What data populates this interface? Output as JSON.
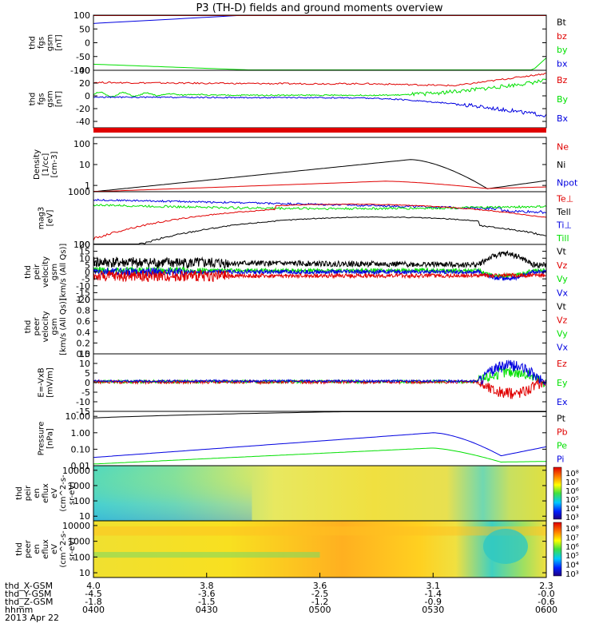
{
  "title": "P3 (TH-D) fields and ground moments overview",
  "colors": {
    "black": "#000000",
    "red": "#e00000",
    "green": "#00e000",
    "blue": "#0000e0"
  },
  "colorbar_labels": [
    "10⁸",
    "10⁷",
    "10⁶",
    "10⁵",
    "10⁴",
    "10³"
  ],
  "chart_data": [
    {
      "type": "line",
      "ylabel": [
        "thd",
        "fgs",
        "gsm",
        "[nT]"
      ],
      "ylim": [
        -100,
        100
      ],
      "yticks": [
        "100",
        "50",
        "0",
        "-50",
        "-100"
      ],
      "legend": [
        {
          "name": "Bt",
          "color": "black"
        },
        {
          "name": "bz",
          "color": "red"
        },
        {
          "name": "by",
          "color": "green"
        },
        {
          "name": "bx",
          "color": "blue"
        }
      ]
    },
    {
      "type": "line",
      "ylabel": [
        "thd",
        "fgs",
        "gsm",
        "[nT]"
      ],
      "ylim": [
        -50,
        40
      ],
      "yticks": [
        "40",
        "20",
        "0",
        "-20",
        "-40"
      ],
      "legend": [
        {
          "name": "Bz",
          "color": "red"
        },
        {
          "name": "By",
          "color": "green"
        },
        {
          "name": "Bx",
          "color": "blue"
        }
      ]
    },
    {
      "type": "line",
      "ylabel": [
        "Density",
        "[1/cc]",
        "[cm-3]"
      ],
      "yscale": "log",
      "ylim": [
        0.5,
        200
      ],
      "yticks": [
        "100",
        "10",
        "1"
      ],
      "legend": [
        {
          "name": "Ne",
          "color": "red"
        },
        {
          "name": "Ni",
          "color": "black"
        },
        {
          "name": "Npot",
          "color": "blue"
        }
      ]
    },
    {
      "type": "line",
      "ylabel": [
        "mag3",
        "[eV]"
      ],
      "yscale": "log",
      "ylim": [
        100,
        1000
      ],
      "yticks": [
        "1000",
        "100"
      ],
      "legend": [
        {
          "name": "Te⊥",
          "color": "red"
        },
        {
          "name": "Tell",
          "color": "black"
        },
        {
          "name": "Ti⊥",
          "color": "blue"
        },
        {
          "name": "Till",
          "color": "green"
        }
      ]
    },
    {
      "type": "line",
      "ylabel": [
        "thd",
        "peir",
        "velocity",
        "gsm",
        "[km/s (All Qs)]"
      ],
      "ylim": [
        -20,
        20
      ],
      "yticks": [
        "20",
        "15",
        "10",
        "5",
        "0",
        "-5",
        "-10",
        "-15",
        "-20"
      ],
      "legend": [
        {
          "name": "Vt",
          "color": "black"
        },
        {
          "name": "Vz",
          "color": "red"
        },
        {
          "name": "Vy",
          "color": "green"
        },
        {
          "name": "Vx",
          "color": "blue"
        }
      ]
    },
    {
      "type": "line",
      "ylabel": [
        "thd",
        "peer",
        "velocity",
        "gsm",
        "[km/s (All Qs)]"
      ],
      "ylim": [
        0,
        1
      ],
      "yticks": [
        "1.0",
        "0.8",
        "0.6",
        "0.4",
        "0.2",
        "0.0"
      ],
      "legend": [
        {
          "name": "Vt",
          "color": "black"
        },
        {
          "name": "Vz",
          "color": "red"
        },
        {
          "name": "Vy",
          "color": "green"
        },
        {
          "name": "Vx",
          "color": "blue"
        }
      ]
    },
    {
      "type": "line",
      "ylabel": [
        "E=-VxB",
        "[mV/m]"
      ],
      "ylim": [
        -15,
        15
      ],
      "yticks": [
        "15",
        "10",
        "5",
        "0",
        "-5",
        "-10",
        "-15"
      ],
      "legend": [
        {
          "name": "Ez",
          "color": "red"
        },
        {
          "name": "Ey",
          "color": "green"
        },
        {
          "name": "Ex",
          "color": "blue"
        }
      ]
    },
    {
      "type": "line",
      "ylabel": [
        "Pressure",
        "[nPa]"
      ],
      "yscale": "log",
      "ylim": [
        0.01,
        20
      ],
      "yticks": [
        "10.00",
        "1.00",
        "0.10",
        "0.01"
      ],
      "legend": [
        {
          "name": "Pt",
          "color": "black"
        },
        {
          "name": "Pb",
          "color": "red"
        },
        {
          "name": "Pe",
          "color": "green"
        },
        {
          "name": "Pi",
          "color": "blue"
        }
      ]
    },
    {
      "type": "heatmap",
      "ylabel": [
        "thd",
        "peir",
        "en",
        "eflux",
        "eV",
        "(cm^2-s-",
        "sr-eV)"
      ],
      "yscale": "log",
      "ylim": [
        5,
        20000
      ],
      "yticks": [
        "10000",
        "1000",
        "100",
        "10"
      ]
    },
    {
      "type": "heatmap",
      "ylabel": [
        "thd",
        "peer",
        "en",
        "eflux",
        "eV",
        "(cm^2-s-",
        "sr-eV)"
      ],
      "yscale": "log",
      "ylim": [
        5,
        20000
      ],
      "yticks": [
        "10000",
        "1000",
        "100",
        "10"
      ]
    }
  ],
  "x_axis": {
    "row_labels": [
      "thd_X-GSM",
      "thd_Y-GSM",
      "thd_Z-GSM",
      "hhmm",
      "2013 Apr 22"
    ],
    "ticks": [
      {
        "x": "4.0",
        "y": "-4.5",
        "z": "-1.8",
        "hhmm": "0400"
      },
      {
        "x": "3.8",
        "y": "-3.6",
        "z": "-1.5",
        "hhmm": "0430"
      },
      {
        "x": "3.6",
        "y": "-2.5",
        "z": "-1.2",
        "hhmm": "0500"
      },
      {
        "x": "3.1",
        "y": "-1.4",
        "z": "-0.9",
        "hhmm": "0530"
      },
      {
        "x": "2.3",
        "y": "-0.0",
        "z": "-0.6",
        "hhmm": "0600"
      }
    ]
  }
}
